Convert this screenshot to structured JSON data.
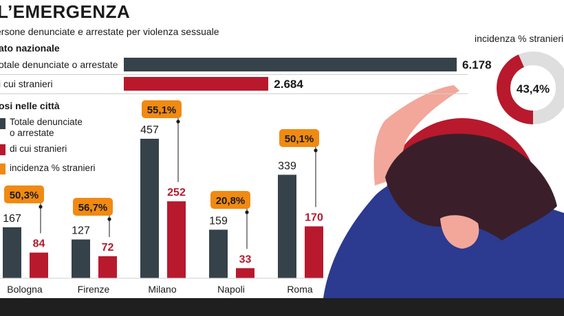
{
  "header": {
    "title": "L’EMERGENZA",
    "subtitle": "ersone denunciate e arrestate per violenza sessuale"
  },
  "national": {
    "section_label": "ato nazionale",
    "rows": [
      {
        "label": "otale denunciate o arrestate",
        "value": 6178,
        "value_label": "6.178",
        "color": "#36424a"
      },
      {
        "label": "i cui stranieri",
        "value": 2684,
        "value_label": "2.684",
        "color": "#b8192d"
      }
    ],
    "donut": {
      "label": "incidenza % stranieri",
      "value": 43.4,
      "value_label": "43,4%"
    }
  },
  "cities_section": {
    "section_label": "osi nelle città",
    "legend": [
      {
        "text": "Totale denunciate\no arrestate",
        "color": "#36424a"
      },
      {
        "text": "di cui stranieri",
        "color": "#b8192d"
      },
      {
        "text": "incidenza % stranieri",
        "color": "#f08a12"
      }
    ]
  },
  "chart_data": {
    "type": "bar",
    "categories": [
      "Bologna",
      "Firenze",
      "Milano",
      "Napoli",
      "Roma"
    ],
    "series": [
      {
        "values": [
          167,
          127,
          457,
          159,
          339
        ],
        "color": "#36424a"
      },
      {
        "values": [
          84,
          72,
          252,
          33,
          170
        ],
        "color": "#b8192d"
      }
    ],
    "incidence_labels": [
      "50,3%",
      "56,7%",
      "55,1%",
      "20,8%",
      "50,1%"
    ],
    "incidence_values": [
      50.3,
      56.7,
      55.1,
      20.8,
      50.1
    ]
  },
  "colors": {
    "dark": "#36424a",
    "red": "#b8192d",
    "orange": "#f08a12",
    "bottom_band": "#1f1f1f",
    "illustration_circle": "#b8192d",
    "illustration_clothes": "#2c3a8f",
    "illustration_skin": "#f2a79a",
    "illustration_hair": "#3a1f2a"
  }
}
